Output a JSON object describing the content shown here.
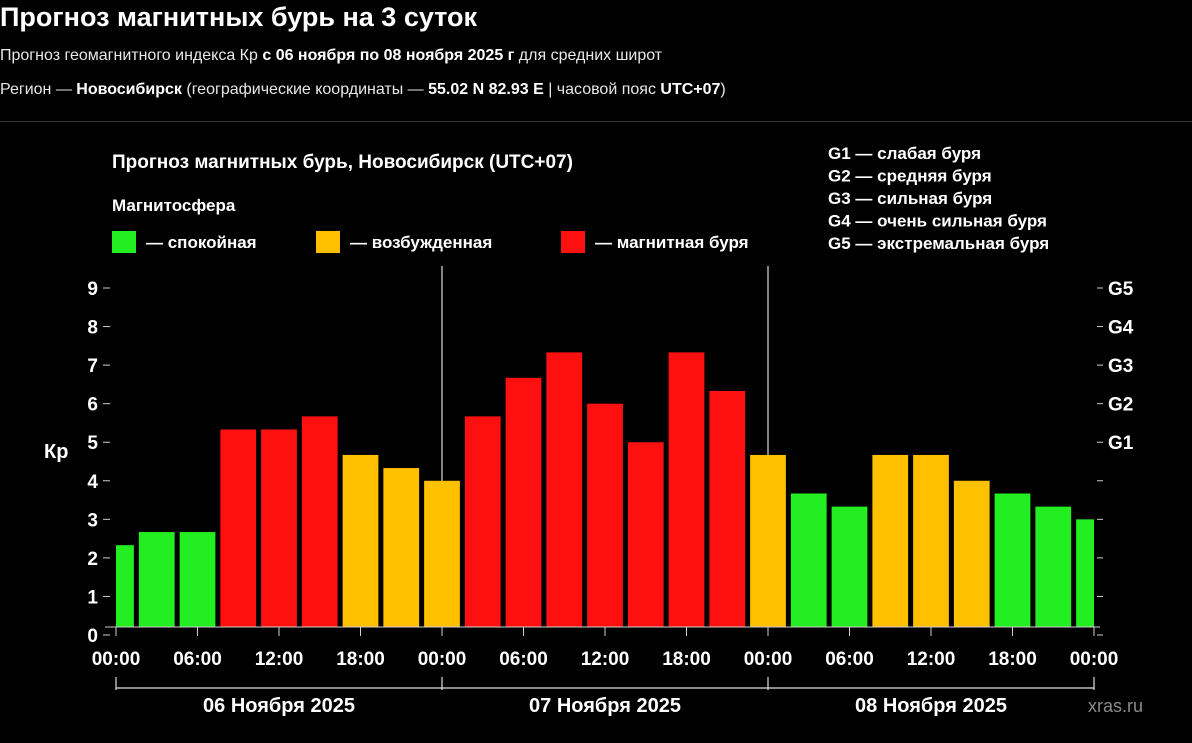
{
  "page": {
    "title": "Прогноз магнитных бурь на 3 суток",
    "sub1_a": "Прогноз геомагнитного индекса Кр ",
    "sub1_b": "с 06 ноября по 08 ноября 2025 г",
    "sub1_c": " для средних широт",
    "sub2_a": "Регион — ",
    "sub2_b": "Новосибирск",
    "sub2_c": " (географические координаты — ",
    "sub2_d": "55.02 N 82.93 E",
    "sub2_e": " | часовой пояс ",
    "sub2_f": "UTC+07",
    "sub2_g": ")"
  },
  "chart_data": {
    "type": "bar",
    "title": "Прогноз магнитных бурь, Новосибирск (UTC+07)",
    "legend_title": "Магнитосфера",
    "legend": [
      {
        "label": "— спокойная",
        "color": "#22ee22"
      },
      {
        "label": "— возбужденная",
        "color": "#ffc000"
      },
      {
        "label": "— магнитная буря",
        "color": "#ff1010"
      }
    ],
    "storm_scale": [
      "G1 — слабая буря",
      "G2 — средняя буря",
      "G3 — сильная буря",
      "G4 — очень сильная буря",
      "G5 — экстремальная буря"
    ],
    "ylabel": "Кр",
    "ylim": [
      0,
      9
    ],
    "yticks": [
      "0",
      "1",
      "2",
      "3",
      "4",
      "5",
      "6",
      "7",
      "8",
      "9"
    ],
    "right_ticks": [
      {
        "label": "G1",
        "value": 5
      },
      {
        "label": "G2",
        "value": 6
      },
      {
        "label": "G3",
        "value": 7
      },
      {
        "label": "G4",
        "value": 8
      },
      {
        "label": "G5",
        "value": 9
      }
    ],
    "xtick_labels": [
      "00:00",
      "06:00",
      "12:00",
      "18:00",
      "00:00",
      "06:00",
      "12:00",
      "18:00",
      "00:00",
      "06:00",
      "12:00",
      "18:00",
      "00:00"
    ],
    "days": [
      "06 Ноября 2025",
      "07 Ноября 2025",
      "08 Ноября 2025"
    ],
    "interval_hours": 3,
    "values": [
      2.33,
      2.67,
      2.67,
      5.33,
      5.33,
      5.67,
      4.67,
      4.33,
      4.0,
      5.67,
      6.67,
      7.33,
      6.0,
      5.0,
      7.33,
      6.33,
      4.67,
      3.67,
      3.33,
      4.67,
      4.67,
      4.0,
      3.67,
      3.33,
      3.0
    ],
    "thresholds": {
      "excited": 4,
      "storm": 5
    },
    "watermark": "xras.ru"
  }
}
